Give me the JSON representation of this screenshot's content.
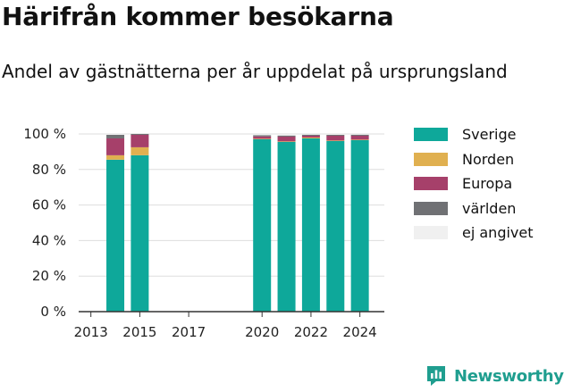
{
  "title": "Härifrån kommer besökarna",
  "subtitle": "Andel av gästnätterna per år uppdelat på ursprungsland",
  "brand": {
    "name": "Newsworthy",
    "icon": "newsworthy-logo-icon",
    "color": "#1f9e8f"
  },
  "chart_data": {
    "type": "bar",
    "stacked": true,
    "x_ticks": [
      "2013",
      "2015",
      "2017",
      "2020",
      "2022",
      "2024"
    ],
    "y_ticks": [
      "0 %",
      "20 %",
      "40 %",
      "60 %",
      "80 %",
      "100 %"
    ],
    "ylim": [
      0,
      100
    ],
    "grid": true,
    "legend_position": "right",
    "categories": [
      "2014",
      "2015",
      "2020",
      "2021",
      "2022",
      "2023",
      "2024"
    ],
    "series": [
      {
        "name": "Sverige",
        "color": "#0ea89a",
        "values": [
          85.5,
          88,
          97,
          95.5,
          97.5,
          96,
          96.5
        ]
      },
      {
        "name": "Norden",
        "color": "#e0b050",
        "values": [
          2.5,
          4.5,
          0.3,
          0.3,
          0.5,
          0.3,
          0.3
        ]
      },
      {
        "name": "Europa",
        "color": "#a6406a",
        "values": [
          9.5,
          7,
          1.3,
          2.7,
          1,
          2.7,
          2.2
        ]
      },
      {
        "name": "världen",
        "color": "#707174",
        "values": [
          2,
          0.5,
          0.7,
          0.6,
          0.6,
          0.5,
          0.6
        ]
      },
      {
        "name": "ej angivet",
        "color": "#f0f0f0",
        "values": [
          0.5,
          0,
          0.7,
          0.9,
          0.4,
          0.5,
          0.4
        ]
      }
    ]
  }
}
